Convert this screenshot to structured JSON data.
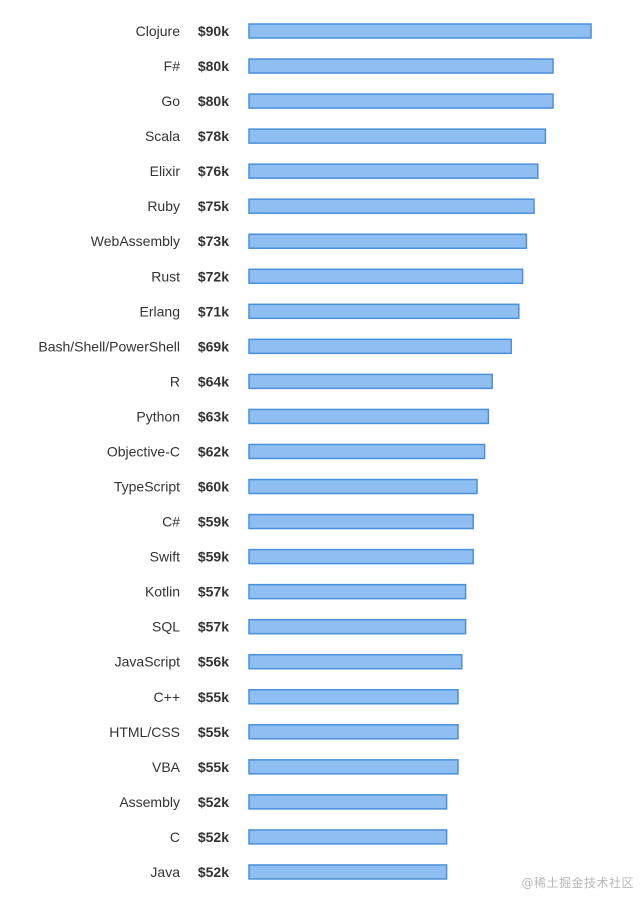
{
  "chart_data": {
    "type": "bar",
    "orientation": "horizontal",
    "categories": [
      "Clojure",
      "F#",
      "Go",
      "Scala",
      "Elixir",
      "Ruby",
      "WebAssembly",
      "Rust",
      "Erlang",
      "Bash/Shell/PowerShell",
      "R",
      "Python",
      "Objective-C",
      "TypeScript",
      "C#",
      "Swift",
      "Kotlin",
      "SQL",
      "JavaScript",
      "C++",
      "HTML/CSS",
      "VBA",
      "Assembly",
      "C",
      "Java"
    ],
    "values": [
      90,
      80,
      80,
      78,
      76,
      75,
      73,
      72,
      71,
      69,
      64,
      63,
      62,
      60,
      59,
      59,
      57,
      57,
      56,
      55,
      55,
      55,
      52,
      52,
      52
    ],
    "value_labels": [
      "$90k",
      "$80k",
      "$80k",
      "$78k",
      "$76k",
      "$75k",
      "$73k",
      "$72k",
      "$71k",
      "$69k",
      "$64k",
      "$63k",
      "$62k",
      "$60k",
      "$59k",
      "$59k",
      "$57k",
      "$57k",
      "$56k",
      "$55k",
      "$55k",
      "$55k",
      "$52k",
      "$52k",
      "$52k"
    ],
    "bar_color": "#8fbff2",
    "bar_border_color": "#4a8fd9",
    "title": "",
    "xlabel": "",
    "ylabel": "",
    "xlim": [
      0,
      90
    ],
    "grid": false,
    "legend": "none"
  },
  "watermark": "@稀土掘金技术社区"
}
